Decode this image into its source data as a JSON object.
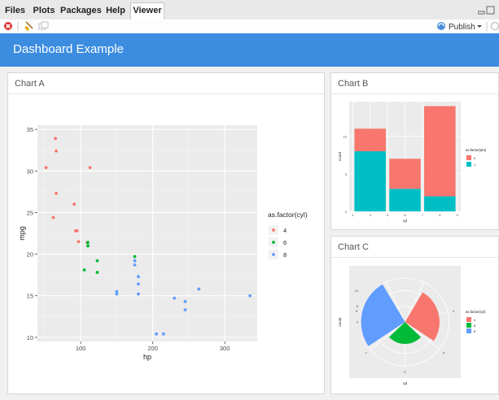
{
  "tabs": [
    {
      "label": "Files",
      "active": false
    },
    {
      "label": "Plots",
      "active": false
    },
    {
      "label": "Packages",
      "active": false
    },
    {
      "label": "Help",
      "active": false
    },
    {
      "label": "Viewer",
      "active": true
    }
  ],
  "toolbar": {
    "publish_label": "Publish"
  },
  "dashboard": {
    "title": "Dashboard Example"
  },
  "colors": {
    "accent": "#3c8de0",
    "cyl4": "#F8766D",
    "cyl6": "#00BA38",
    "cyl8": "#619CFF",
    "am0": "#F8766D",
    "am1": "#00BFC4"
  },
  "cards": {
    "a_title": "Chart A",
    "b_title": "Chart B",
    "c_title": "Chart C"
  },
  "chart_data": [
    {
      "id": "chart-a",
      "type": "scatter",
      "title": "Chart A",
      "xlabel": "hp",
      "ylabel": "mpg",
      "xlim": [
        40,
        345
      ],
      "ylim": [
        9.5,
        35.5
      ],
      "xticks": [
        100,
        200,
        300
      ],
      "yticks": [
        10,
        15,
        20,
        25,
        30,
        35
      ],
      "legend": {
        "title": "as.factor(cyl)",
        "entries": [
          "4",
          "6",
          "8"
        ],
        "placement": "right"
      },
      "series": [
        {
          "name": "4",
          "points": [
            [
              93,
              22.8
            ],
            [
              62,
              24.4
            ],
            [
              95,
              22.8
            ],
            [
              66,
              32.4
            ],
            [
              52,
              30.4
            ],
            [
              65,
              33.9
            ],
            [
              97,
              21.5
            ],
            [
              66,
              27.3
            ],
            [
              91,
              26.0
            ],
            [
              113,
              30.4
            ],
            [
              109,
              21.4
            ]
          ]
        },
        {
          "name": "6",
          "points": [
            [
              110,
              21.0
            ],
            [
              110,
              21.0
            ],
            [
              110,
              21.4
            ],
            [
              105,
              18.1
            ],
            [
              123,
              19.2
            ],
            [
              123,
              17.8
            ],
            [
              175,
              19.7
            ]
          ]
        },
        {
          "name": "8",
          "points": [
            [
              175,
              18.7
            ],
            [
              245,
              14.3
            ],
            [
              180,
              16.4
            ],
            [
              180,
              17.3
            ],
            [
              180,
              15.2
            ],
            [
              205,
              10.4
            ],
            [
              215,
              10.4
            ],
            [
              230,
              14.7
            ],
            [
              150,
              15.5
            ],
            [
              150,
              15.2
            ],
            [
              245,
              13.3
            ],
            [
              175,
              19.2
            ],
            [
              264,
              15.8
            ],
            [
              335,
              15.0
            ]
          ]
        }
      ]
    },
    {
      "id": "chart-b",
      "type": "bar",
      "title": "Chart B",
      "xlabel": "cyl",
      "ylabel": "count",
      "xlim": [
        2.8,
        9.2
      ],
      "ylim": [
        0,
        14.6
      ],
      "xticks": [
        3,
        4,
        5,
        6,
        7,
        8,
        9
      ],
      "yticks": [
        0,
        5,
        10
      ],
      "categories": [
        "4",
        "6",
        "8"
      ],
      "x": [
        4,
        6,
        8
      ],
      "series": [
        {
          "name": "1",
          "values": [
            8,
            3,
            2
          ]
        },
        {
          "name": "0",
          "values": [
            3,
            4,
            12
          ]
        }
      ],
      "legend": {
        "title": "as.factor(am)",
        "entries": [
          "0",
          "1"
        ],
        "placement": "right"
      }
    },
    {
      "id": "chart-c",
      "type": "bar",
      "title": "Chart C",
      "xlabel": "cyl",
      "ylabel": "count",
      "coord": "polar",
      "categories": [
        "4",
        "6",
        "8"
      ],
      "values": [
        11,
        7,
        14
      ],
      "ylim": [
        0,
        14
      ],
      "yticks": [
        0,
        5,
        10
      ],
      "xticks": [
        "4",
        "5",
        "6",
        "7",
        "8"
      ],
      "legend": {
        "title": "as.factor(cyl)",
        "entries": [
          "4",
          "6",
          "8"
        ],
        "placement": "right"
      }
    }
  ]
}
